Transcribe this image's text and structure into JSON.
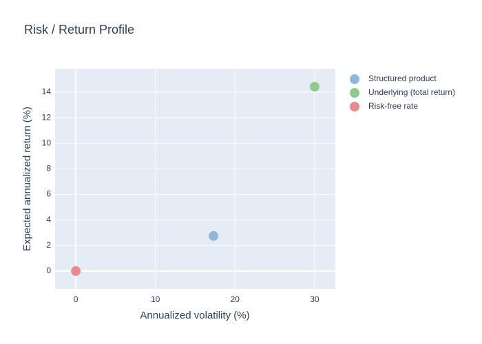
{
  "chart_data": {
    "type": "scatter",
    "title": "Risk / Return Profile",
    "x_label": "Annualized volatility (%)",
    "y_label": "Expected annualized return (%)",
    "series": [
      {
        "name": "Structured product",
        "color": "#8db7db",
        "x": [
          17.3
        ],
        "values": [
          2.75
        ]
      },
      {
        "name": "Underlying (total return)",
        "color": "#8fcb8a",
        "x": [
          30
        ],
        "values": [
          14.43
        ]
      },
      {
        "name": "Risk-free rate",
        "color": "#ea8a8c",
        "x": [
          0
        ],
        "values": [
          0
        ]
      }
    ],
    "xlim": [
      -2.6,
      32.6
    ],
    "xticks": [
      0,
      10,
      20,
      30
    ],
    "ylim": [
      -1.4,
      15.83
    ],
    "yticks": [
      0,
      2,
      4,
      6,
      8,
      10,
      12,
      14
    ],
    "grid": true,
    "legend": "right"
  }
}
